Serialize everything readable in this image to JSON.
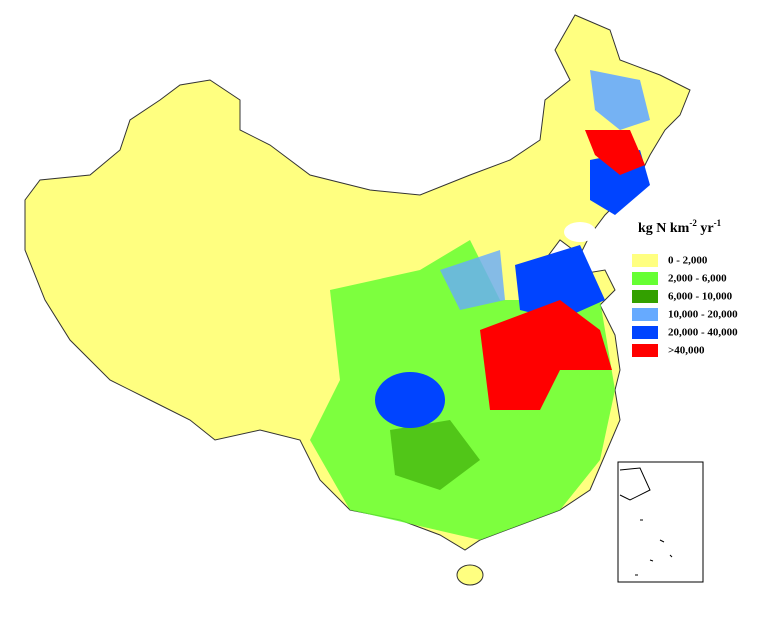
{
  "legend": {
    "title_parts": [
      "kg N km",
      "-2",
      " yr",
      "-1"
    ],
    "items": [
      {
        "label": "0 - 2,000",
        "color": "#ffff80"
      },
      {
        "label": "2,000 - 6,000",
        "color": "#66ff33"
      },
      {
        "label": "6,000 - 10,000",
        "color": "#33a000"
      },
      {
        "label": "10,000 - 20,000",
        "color": "#66aaff"
      },
      {
        "label": "20,000 - 40,000",
        "color": "#0044ff"
      },
      {
        "label": ">40,000",
        "color": "#ff0000"
      }
    ]
  }
}
